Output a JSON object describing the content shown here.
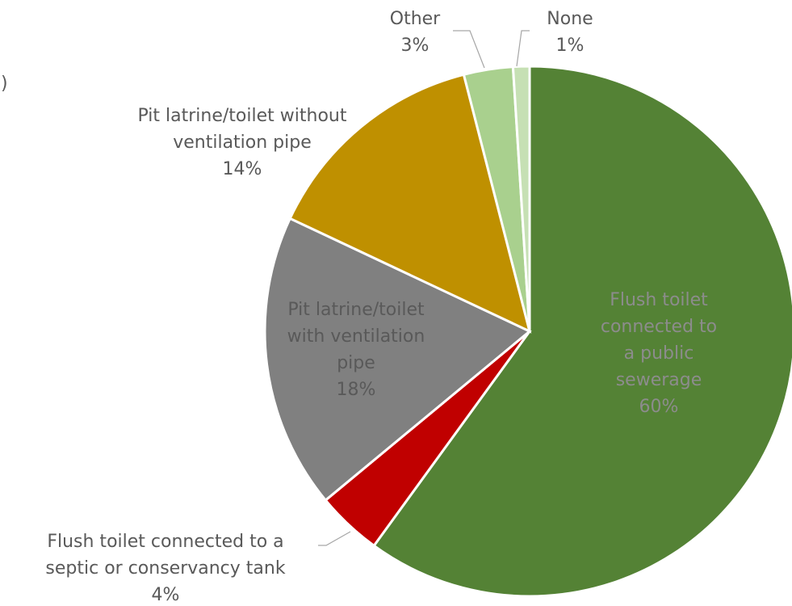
{
  "chart_data": {
    "type": "pie",
    "title": "",
    "slices": [
      {
        "label": [
          "Flush toilet",
          "connected to",
          "a public",
          "sewerage"
        ],
        "value": 60,
        "display": "60%",
        "color": "#548235",
        "text_color": "#8c8c8c"
      },
      {
        "label": [
          "Flush toilet connected to a",
          "septic or conservancy tank"
        ],
        "value": 4,
        "display": "4%",
        "color": "#c00000",
        "text_color": "#595959"
      },
      {
        "label": [
          "Pit latrine/toilet",
          "with ventilation",
          "pipe"
        ],
        "value": 18,
        "display": "18%",
        "color": "#808080",
        "text_color": "#595959"
      },
      {
        "label": [
          "Pit latrine/toilet without",
          "ventilation pipe"
        ],
        "value": 14,
        "display": "14%",
        "color": "#bf9000",
        "text_color": "#595959"
      },
      {
        "label": [
          "Other"
        ],
        "value": 3,
        "display": "3%",
        "color": "#a9d08e",
        "text_color": "#595959"
      },
      {
        "label": [
          "None"
        ],
        "value": 1,
        "display": "1%",
        "color": "#c6e0b4",
        "text_color": "#595959"
      }
    ],
    "start_angle_deg": 0,
    "direction": "clockwise",
    "legend": "none"
  }
}
